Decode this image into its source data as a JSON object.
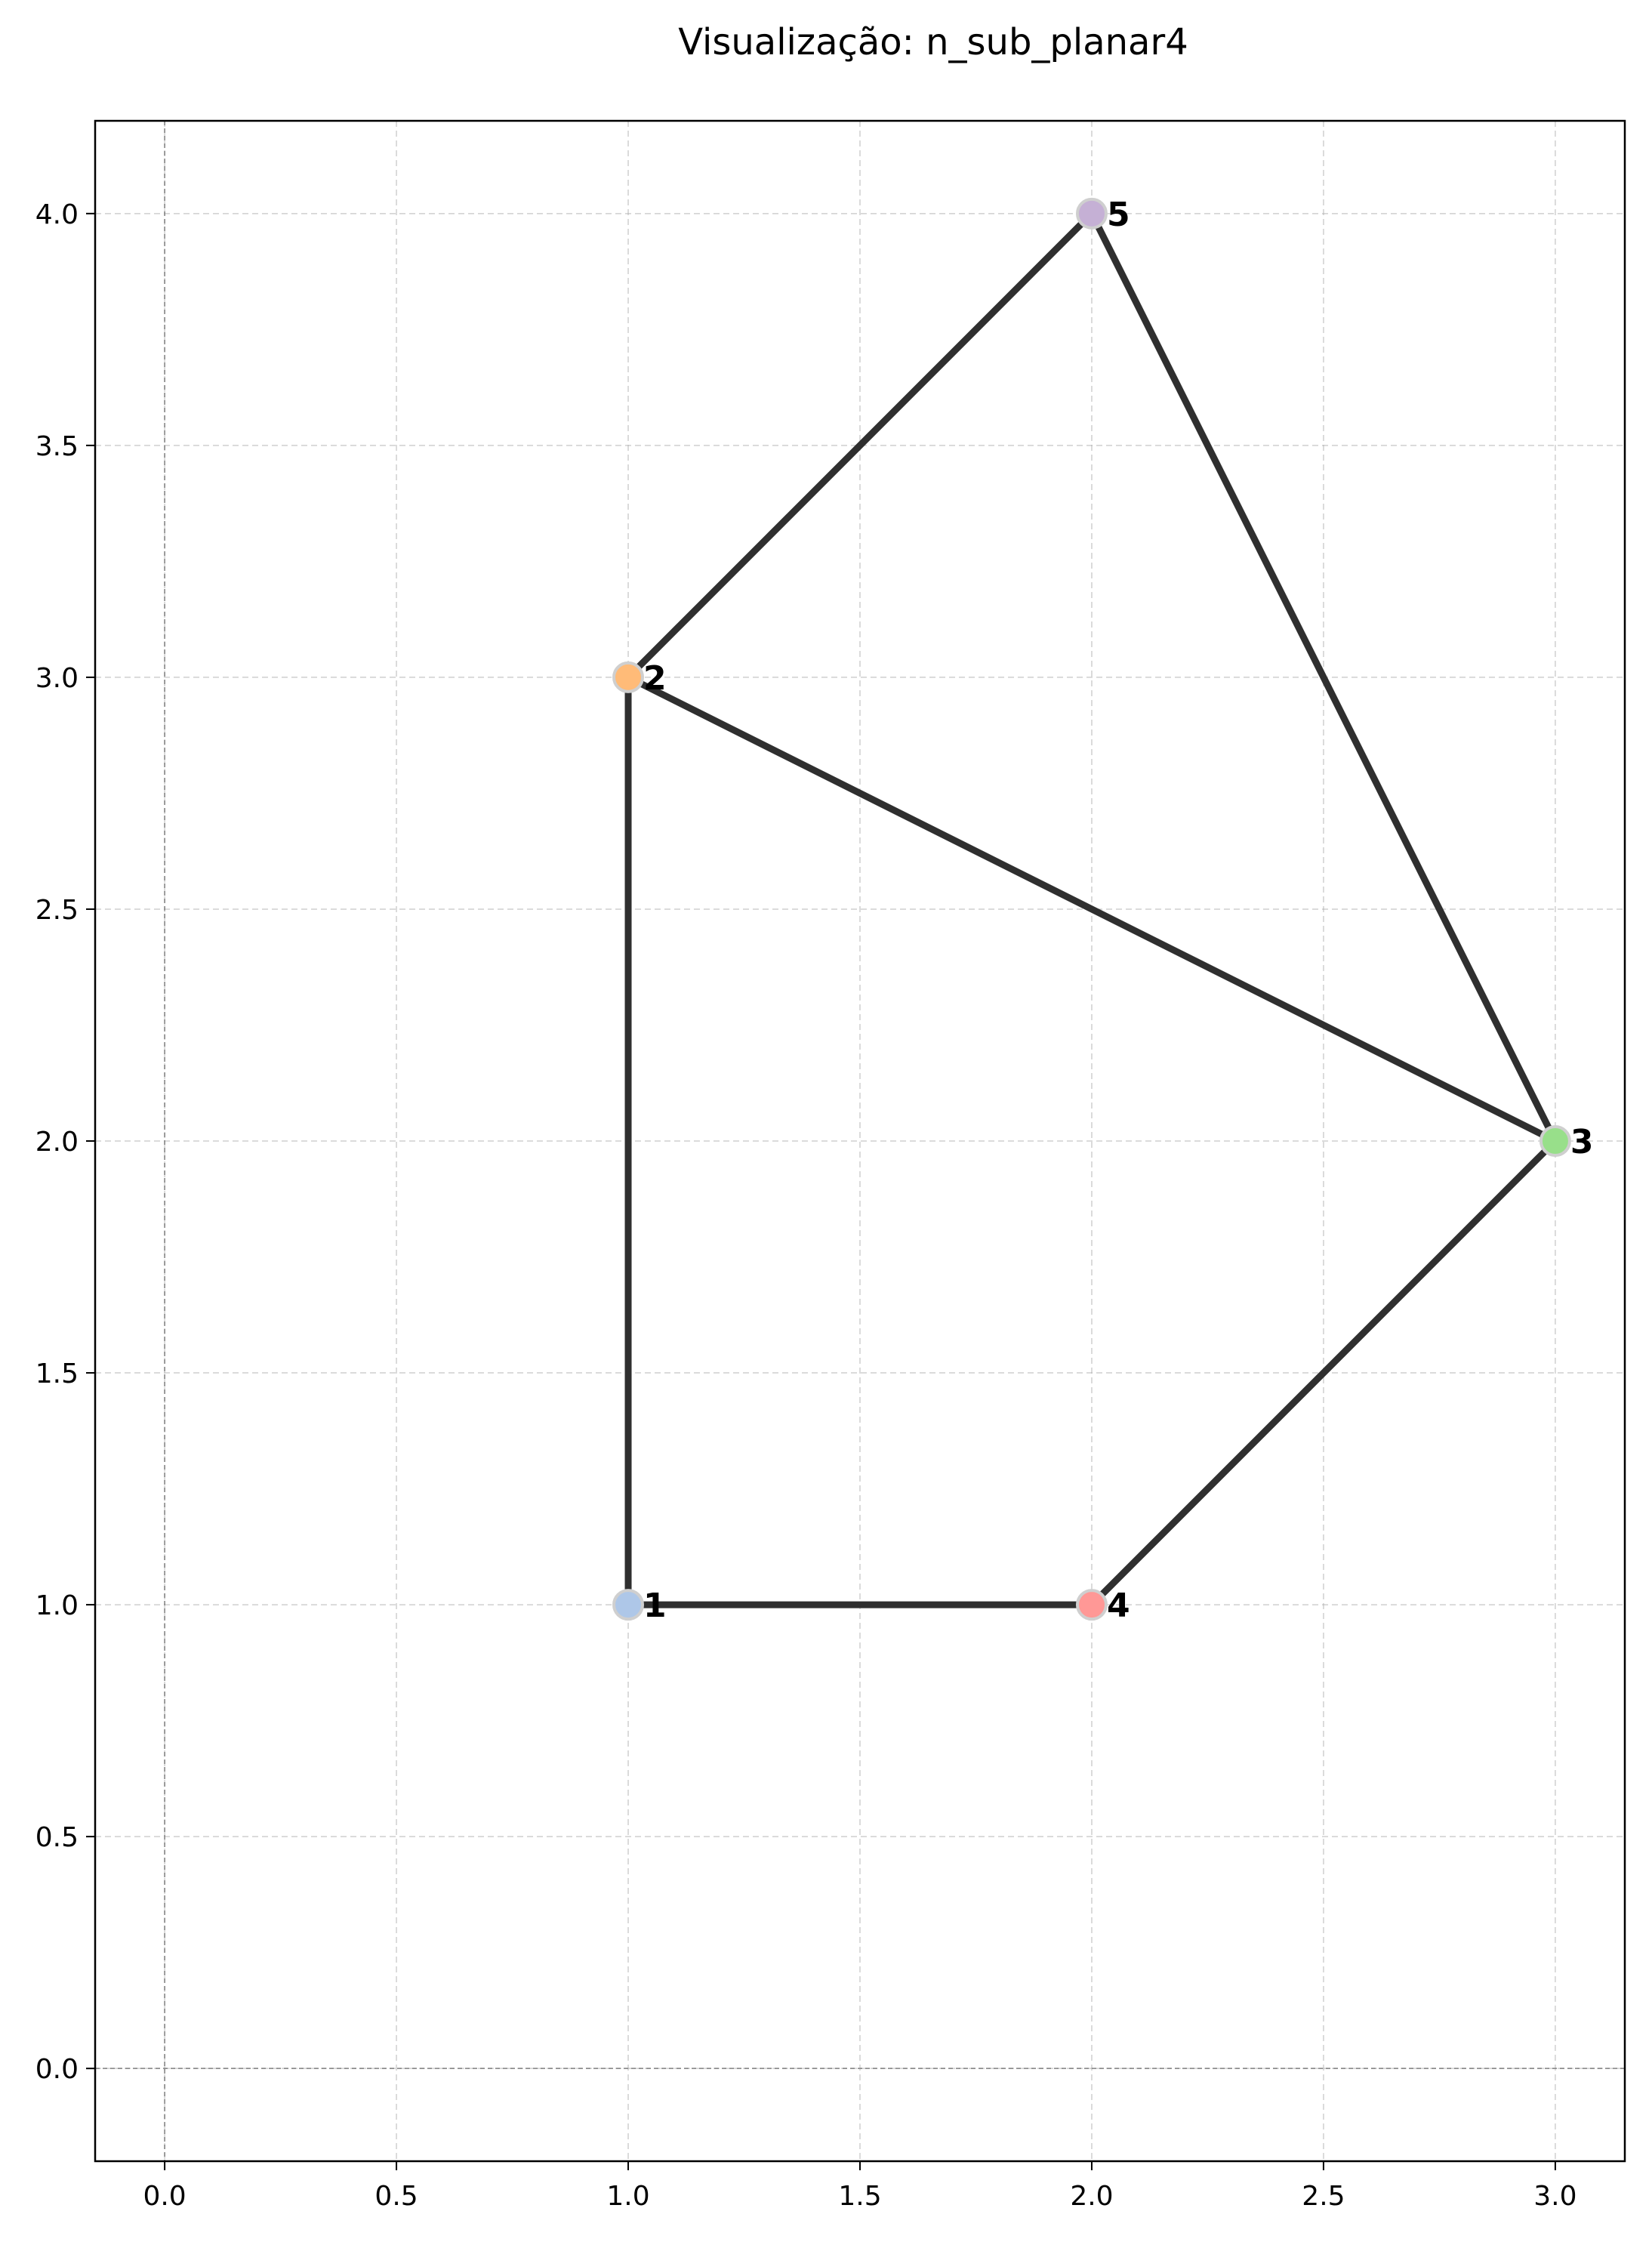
{
  "title": "Visualização: n_sub_planar4",
  "chart_data": {
    "type": "scatter",
    "title": "Visualização: n_sub_planar4",
    "xlabel": "",
    "ylabel": "",
    "xlim": [
      -0.15,
      3.15
    ],
    "ylim": [
      -0.2,
      4.2
    ],
    "x_ticks": [
      "0.0",
      "0.5",
      "1.0",
      "1.5",
      "2.0",
      "2.5",
      "3.0"
    ],
    "y_ticks": [
      "0.0",
      "0.5",
      "1.0",
      "1.5",
      "2.0",
      "2.5",
      "3.0",
      "3.5",
      "4.0"
    ],
    "grid": true,
    "nodes": [
      {
        "label": "1",
        "x": 1,
        "y": 1,
        "color": "#aec7e8"
      },
      {
        "label": "2",
        "x": 1,
        "y": 3,
        "color": "#ffbb78"
      },
      {
        "label": "3",
        "x": 3,
        "y": 2,
        "color": "#98df8a"
      },
      {
        "label": "4",
        "x": 2,
        "y": 1,
        "color": "#ff9896"
      },
      {
        "label": "5",
        "x": 2,
        "y": 4,
        "color": "#c5b0d5"
      }
    ],
    "edges": [
      [
        "1",
        "2"
      ],
      [
        "1",
        "4"
      ],
      [
        "2",
        "3"
      ],
      [
        "2",
        "5"
      ],
      [
        "3",
        "4"
      ],
      [
        "3",
        "5"
      ]
    ]
  }
}
